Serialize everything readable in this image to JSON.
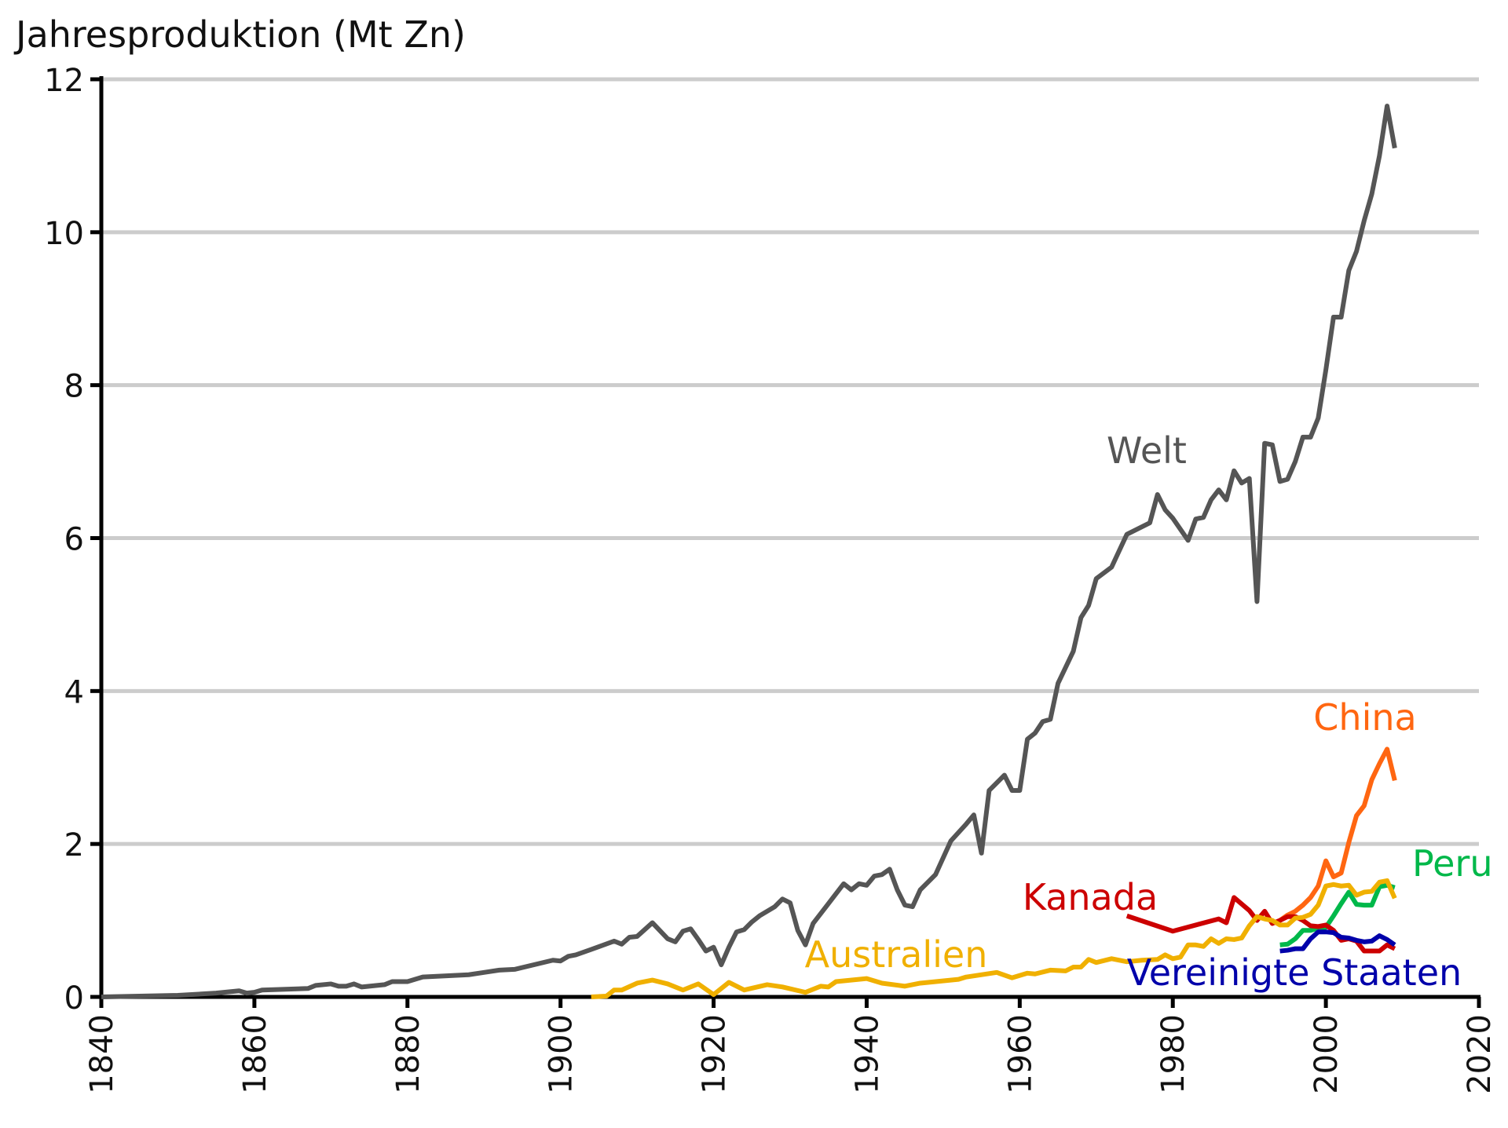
{
  "chart_data": {
    "type": "line",
    "title": "Jahresproduktion (Mt Zn)",
    "xlim": [
      1840,
      2020
    ],
    "xticks": [
      1840,
      1860,
      1880,
      1900,
      1920,
      1940,
      1960,
      1980,
      2000,
      2020
    ],
    "ylim": [
      0,
      12
    ],
    "yticks": [
      0,
      2,
      4,
      6,
      8,
      10,
      12
    ],
    "grid": true,
    "series": [
      {
        "name": "Welt",
        "color": "#555555",
        "x": [
          1840,
          1845,
          1850,
          1855,
          1858,
          1859,
          1860,
          1861,
          1867,
          1868,
          1870,
          1871,
          1872,
          1873,
          1874,
          1877,
          1878,
          1880,
          1882,
          1888,
          1890,
          1892,
          1894,
          1899,
          1900,
          1901,
          1902,
          1904,
          1907,
          1908,
          1909,
          1910,
          1912,
          1914,
          1915,
          1916,
          1917,
          1918,
          1919,
          1920,
          1921,
          1922,
          1923,
          1924,
          1925,
          1926,
          1928,
          1929,
          1930,
          1931,
          1932,
          1933,
          1935,
          1937,
          1938,
          1939,
          1940,
          1941,
          1942,
          1943,
          1944,
          1945,
          1946,
          1947,
          1949,
          1951,
          1953,
          1954,
          1955,
          1956,
          1958,
          1959,
          1960,
          1961,
          1962,
          1963,
          1964,
          1965,
          1967,
          1968,
          1969,
          1970,
          1972,
          1974,
          1977,
          1978,
          1979,
          1980,
          1982,
          1983,
          1984,
          1985,
          1986,
          1987,
          1988,
          1989,
          1990,
          1991,
          1992,
          1993,
          1994,
          1995,
          1996,
          1997,
          1998,
          1999,
          2000,
          2001,
          2002,
          2003,
          2004,
          2005,
          2006,
          2007,
          2008,
          2009
        ],
        "values": [
          0,
          0.01,
          0.02,
          0.05,
          0.08,
          0.05,
          0.06,
          0.09,
          0.11,
          0.15,
          0.17,
          0.14,
          0.14,
          0.17,
          0.13,
          0.16,
          0.2,
          0.2,
          0.26,
          0.29,
          0.32,
          0.35,
          0.36,
          0.48,
          0.47,
          0.53,
          0.55,
          0.62,
          0.73,
          0.69,
          0.78,
          0.79,
          0.97,
          0.76,
          0.72,
          0.86,
          0.89,
          0.75,
          0.6,
          0.65,
          0.42,
          0.65,
          0.85,
          0.88,
          0.98,
          1.06,
          1.18,
          1.28,
          1.23,
          0.87,
          0.68,
          0.96,
          1.22,
          1.48,
          1.4,
          1.48,
          1.46,
          1.58,
          1.6,
          1.67,
          1.4,
          1.2,
          1.18,
          1.4,
          1.6,
          2.04,
          2.26,
          2.38,
          1.88,
          2.7,
          2.9,
          2.7,
          2.7,
          3.37,
          3.45,
          3.6,
          3.63,
          4.1,
          4.52,
          4.96,
          5.12,
          5.47,
          5.62,
          6.05,
          6.2,
          6.57,
          6.37,
          6.26,
          5.97,
          6.25,
          6.27,
          6.5,
          6.63,
          6.5,
          6.88,
          6.72,
          6.78,
          5.17,
          7.24,
          7.22,
          6.74,
          6.77,
          7.0,
          7.32,
          7.32,
          7.57,
          8.2,
          8.89,
          8.89,
          9.5,
          9.75,
          10.15,
          10.5,
          11.0,
          11.65,
          11.1
        ]
      },
      {
        "name": "China",
        "color": "#ff6611",
        "x": [
          1994,
          1995,
          1996,
          1997,
          1998,
          1999,
          2000,
          2001,
          2002,
          2003,
          2004,
          2005,
          2006,
          2007,
          2008,
          2009
        ],
        "values": [
          1.0,
          1.07,
          1.12,
          1.2,
          1.3,
          1.45,
          1.78,
          1.57,
          1.62,
          2.02,
          2.37,
          2.5,
          2.84,
          3.05,
          3.24,
          2.83
        ]
      },
      {
        "name": "Peru",
        "color": "#00b84a",
        "x": [
          1994,
          1995,
          1996,
          1997,
          1998,
          1999,
          2000,
          2001,
          2002,
          2003,
          2004,
          2005,
          2006,
          2007,
          2008,
          2009
        ],
        "values": [
          0.68,
          0.69,
          0.76,
          0.87,
          0.87,
          0.9,
          0.91,
          1.06,
          1.22,
          1.37,
          1.21,
          1.2,
          1.2,
          1.44,
          1.46,
          1.43
        ]
      },
      {
        "name": "Kanada",
        "color": "#cc0000",
        "x": [
          1974,
          1980,
          1986,
          1987,
          1988,
          1990,
          1991,
          1992,
          1993,
          1994,
          1995,
          1996,
          1997,
          1998,
          1999,
          2000,
          2001,
          2002,
          2003,
          2004,
          2005,
          2006,
          2007,
          2008,
          2009
        ],
        "values": [
          1.06,
          0.86,
          1.02,
          0.97,
          1.3,
          1.13,
          1.0,
          1.12,
          0.96,
          1.0,
          1.05,
          1.05,
          1.0,
          0.93,
          0.92,
          0.94,
          0.87,
          0.74,
          0.76,
          0.73,
          0.6,
          0.6,
          0.6,
          0.68,
          0.63
        ]
      },
      {
        "name": "Australien",
        "color": "#f0b000",
        "x": [
          1904,
          1906,
          1907,
          1908,
          1910,
          1912,
          1914,
          1916,
          1918,
          1920,
          1922,
          1924,
          1927,
          1929,
          1932,
          1934,
          1935,
          1936,
          1940,
          1942,
          1945,
          1947,
          1952,
          1953,
          1957,
          1959,
          1961,
          1962,
          1964,
          1966,
          1967,
          1968,
          1969,
          1970,
          1972,
          1974,
          1976,
          1978,
          1979,
          1980,
          1981,
          1982,
          1983,
          1984,
          1985,
          1986,
          1987,
          1988,
          1989,
          1990,
          1991,
          1992,
          1993,
          1994,
          1995,
          1996,
          1997,
          1998,
          1999,
          2000,
          2001,
          2002,
          2003,
          2004,
          2005,
          2006,
          2007,
          2008,
          2009
        ],
        "values": [
          0,
          0.01,
          0.09,
          0.09,
          0.18,
          0.22,
          0.17,
          0.09,
          0.17,
          0.03,
          0.19,
          0.09,
          0.16,
          0.13,
          0.06,
          0.14,
          0.13,
          0.2,
          0.24,
          0.18,
          0.14,
          0.18,
          0.23,
          0.26,
          0.32,
          0.25,
          0.31,
          0.3,
          0.35,
          0.34,
          0.39,
          0.39,
          0.49,
          0.45,
          0.5,
          0.46,
          0.48,
          0.49,
          0.55,
          0.5,
          0.52,
          0.68,
          0.68,
          0.66,
          0.76,
          0.7,
          0.76,
          0.75,
          0.77,
          0.93,
          1.05,
          1.02,
          1.0,
          0.94,
          0.94,
          1.03,
          1.04,
          1.08,
          1.2,
          1.45,
          1.47,
          1.45,
          1.46,
          1.33,
          1.37,
          1.38,
          1.5,
          1.52,
          1.29
        ]
      },
      {
        "name": "Vereinigte Staaten",
        "color": "#0000aa",
        "x": [
          1994,
          1995,
          1996,
          1997,
          1998,
          1999,
          2000,
          2001,
          2002,
          2003,
          2004,
          2005,
          2006,
          2007,
          2008,
          2009
        ],
        "values": [
          0.6,
          0.61,
          0.63,
          0.63,
          0.76,
          0.85,
          0.85,
          0.84,
          0.78,
          0.77,
          0.74,
          0.72,
          0.73,
          0.8,
          0.75,
          0.68
        ]
      }
    ]
  }
}
